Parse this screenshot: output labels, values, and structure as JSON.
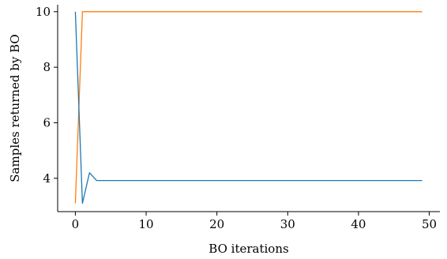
{
  "chart_data": {
    "type": "line",
    "title": "",
    "xlabel": "BO iterations",
    "ylabel": "Samples returned by BO",
    "xlim": [
      -2.5,
      51.5
    ],
    "ylim": [
      2.8,
      10.25
    ],
    "xticks": [
      0,
      10,
      20,
      30,
      40,
      50
    ],
    "yticks": [
      4,
      6,
      8,
      10
    ],
    "grid": false,
    "legend": "none",
    "series": [
      {
        "color": "#ff7f0e",
        "x": [
          0,
          1,
          2,
          3,
          4,
          5,
          6,
          7,
          8,
          9,
          10,
          11,
          12,
          13,
          14,
          15,
          16,
          17,
          18,
          19,
          20,
          21,
          22,
          23,
          24,
          25,
          26,
          27,
          28,
          29,
          30,
          31,
          32,
          33,
          34,
          35,
          36,
          37,
          38,
          39,
          40,
          41,
          42,
          43,
          44,
          45,
          46,
          47,
          48,
          49
        ],
        "y": [
          3.1,
          10,
          10,
          10,
          10,
          10,
          10,
          10,
          10,
          10,
          10,
          10,
          10,
          10,
          10,
          10,
          10,
          10,
          10,
          10,
          10,
          10,
          10,
          10,
          10,
          10,
          10,
          10,
          10,
          10,
          10,
          10,
          10,
          10,
          10,
          10,
          10,
          10,
          10,
          10,
          10,
          10,
          10,
          10,
          10,
          10,
          10,
          10,
          10,
          10
        ]
      },
      {
        "color": "#1f77b4",
        "x": [
          0,
          1,
          2,
          3,
          4,
          5,
          6,
          7,
          8,
          9,
          10,
          11,
          12,
          13,
          14,
          15,
          16,
          17,
          18,
          19,
          20,
          21,
          22,
          23,
          24,
          25,
          26,
          27,
          28,
          29,
          30,
          31,
          32,
          33,
          34,
          35,
          36,
          37,
          38,
          39,
          40,
          41,
          42,
          43,
          44,
          45,
          46,
          47,
          48,
          49
        ],
        "y": [
          10,
          3.1,
          4.2,
          3.92,
          3.92,
          3.92,
          3.92,
          3.92,
          3.92,
          3.92,
          3.92,
          3.92,
          3.92,
          3.92,
          3.92,
          3.92,
          3.92,
          3.92,
          3.92,
          3.92,
          3.92,
          3.92,
          3.92,
          3.92,
          3.92,
          3.92,
          3.92,
          3.92,
          3.92,
          3.92,
          3.92,
          3.92,
          3.92,
          3.92,
          3.92,
          3.92,
          3.92,
          3.92,
          3.92,
          3.92,
          3.92,
          3.92,
          3.92,
          3.92,
          3.92,
          3.92,
          3.92,
          3.92,
          3.92,
          3.92
        ]
      }
    ]
  }
}
